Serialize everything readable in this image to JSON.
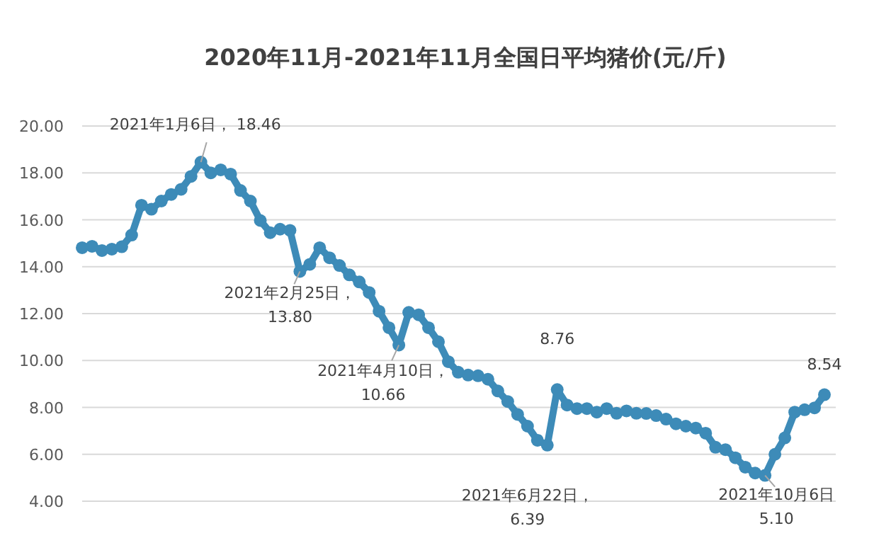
{
  "chart_data": {
    "type": "line",
    "title": "2020年11月-2021年11月全国日平均猪价(元/斤)",
    "categories": [
      null,
      null,
      null,
      null,
      null,
      null,
      null,
      null,
      null,
      null,
      null,
      null,
      null,
      null,
      null,
      null,
      null,
      null,
      null,
      null,
      null,
      null,
      null,
      null,
      null,
      null,
      null,
      null,
      null,
      null,
      null,
      null,
      null,
      null,
      null,
      null,
      null,
      null,
      null,
      null,
      null,
      null,
      null,
      null,
      null,
      null,
      null,
      null,
      null,
      null,
      null,
      null,
      null,
      null,
      null,
      null,
      null,
      null,
      null,
      null,
      null,
      null,
      null,
      null,
      null,
      null,
      null,
      null,
      null,
      null,
      null,
      null,
      null,
      null,
      null,
      null
    ],
    "values": [
      14.81,
      14.87,
      14.69,
      14.75,
      14.85,
      15.35,
      16.62,
      16.45,
      16.8,
      17.08,
      17.3,
      17.85,
      18.46,
      18.0,
      18.13,
      17.95,
      17.25,
      16.8,
      15.97,
      15.45,
      15.6,
      15.55,
      13.8,
      14.1,
      14.81,
      14.38,
      14.05,
      13.65,
      13.35,
      12.9,
      12.1,
      11.4,
      10.66,
      12.05,
      11.95,
      11.4,
      10.8,
      9.95,
      9.5,
      9.38,
      9.35,
      9.2,
      8.7,
      8.25,
      7.7,
      7.2,
      6.6,
      6.39,
      8.76,
      8.1,
      7.95,
      7.95,
      7.8,
      7.95,
      7.75,
      7.85,
      7.75,
      7.74,
      7.65,
      7.5,
      7.3,
      7.2,
      7.12,
      6.9,
      6.3,
      6.2,
      5.85,
      5.45,
      5.2,
      5.1,
      6.0,
      6.7,
      7.8,
      7.9,
      7.98,
      8.54
    ],
    "color": "#3d8bb8",
    "marker": "circle",
    "grid": "y",
    "tick_labels": "y",
    "ylim": [
      4,
      20
    ],
    "yticks": [
      {
        "value": 4,
        "label": "4.00"
      },
      {
        "value": 6,
        "label": "6.00"
      },
      {
        "value": 8,
        "label": "8.00"
      },
      {
        "value": 10,
        "label": "10.00"
      },
      {
        "value": 12,
        "label": "12.00"
      },
      {
        "value": 14,
        "label": "14.00"
      },
      {
        "value": 16,
        "label": "16.00"
      },
      {
        "value": 18,
        "label": "18.00"
      },
      {
        "value": 20,
        "label": "20.00"
      }
    ],
    "annotations": [
      {
        "text": "2021年1月6日， 18.46",
        "y": 18.46
      },
      {
        "text": "2021年2月25日，13.80",
        "y": 13.8
      },
      "2021年4月10日，10.66",
      {
        "text": "8.76",
        "y": 8.76
      },
      {
        "text": "2021年6月22日，6.39",
        "y": 6.39
      },
      {
        "text": "2021年10月6日 5.10",
        "y": 5.1
      },
      {
        "text": "8.54",
        "y": 8.54
      }
    ]
  }
}
